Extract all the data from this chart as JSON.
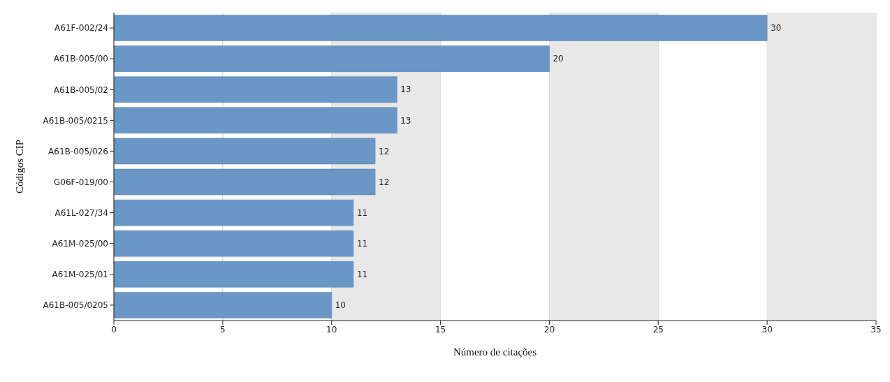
{
  "chart_data": {
    "type": "bar",
    "orientation": "horizontal",
    "xlabel": "Número de citações",
    "ylabel": "Códigos CIP",
    "categories": [
      "A61F-002/24",
      "A61B-005/00",
      "A61B-005/02",
      "A61B-005/0215",
      "A61B-005/026",
      "G06F-019/00",
      "A61L-027/34",
      "A61M-025/00",
      "A61M-025/01",
      "A61B-005/0205"
    ],
    "values": [
      30,
      20,
      13,
      13,
      12,
      12,
      11,
      11,
      11,
      10
    ],
    "color": "#6b97c7",
    "xlim": [
      0,
      35
    ],
    "xticks": [
      0,
      5,
      10,
      15,
      20,
      25,
      30,
      35
    ],
    "grid": "x",
    "data_labels": true,
    "bands": [
      {
        "axis": "x",
        "from": 10,
        "to": 15,
        "color": "#e8e8e8"
      },
      {
        "axis": "x",
        "from": 20,
        "to": 25,
        "color": "#e8e8e8"
      },
      {
        "axis": "x",
        "from": 30,
        "to": 35,
        "color": "#e8e8e8"
      }
    ]
  }
}
